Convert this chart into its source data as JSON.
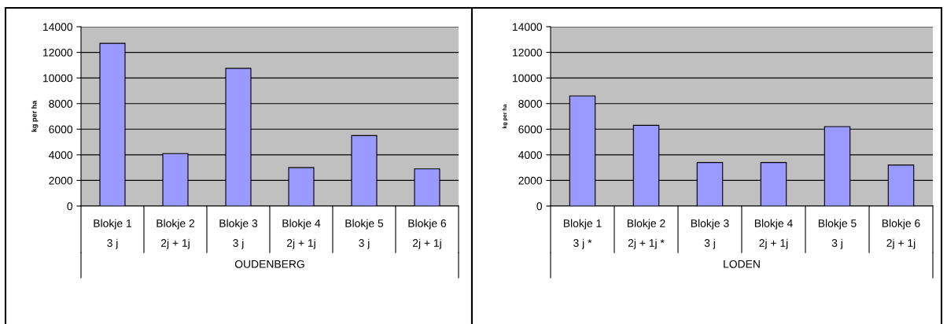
{
  "chart_data": [
    {
      "type": "bar",
      "xlabel": "OUDENBERG",
      "ylabel": "kg per ha",
      "categories": [
        "Blokje 1\n3 j",
        "Blokje 2\n2j + 1j",
        "Blokje 3\n3 j",
        "Blokje 4\n2j + 1j",
        "Blokje 5\n3 j",
        "Blokje 6\n2j + 1j"
      ],
      "values": [
        12700,
        4100,
        10750,
        3000,
        5500,
        2900
      ],
      "color": "#9999ff",
      "ylim": [
        0,
        14000
      ],
      "yticks": [
        0,
        2000,
        4000,
        6000,
        8000,
        10000,
        12000,
        14000
      ],
      "grid": "y"
    },
    {
      "type": "bar",
      "xlabel": "LODEN",
      "ylabel": "kg per ha",
      "categories": [
        "Blokje 1\n3 j *",
        "Blokje 2\n2j + 1j *",
        "Blokje 3\n3 j",
        "Blokje 4\n2j + 1j",
        "Blokje 5\n3 j",
        "Blokje 6\n2j + 1j"
      ],
      "values": [
        8600,
        6300,
        3400,
        3400,
        6200,
        3200
      ],
      "color": "#9999ff",
      "ylim": [
        0,
        14000
      ],
      "yticks": [
        0,
        2000,
        4000,
        6000,
        8000,
        10000,
        12000,
        14000
      ],
      "grid": "y"
    }
  ]
}
